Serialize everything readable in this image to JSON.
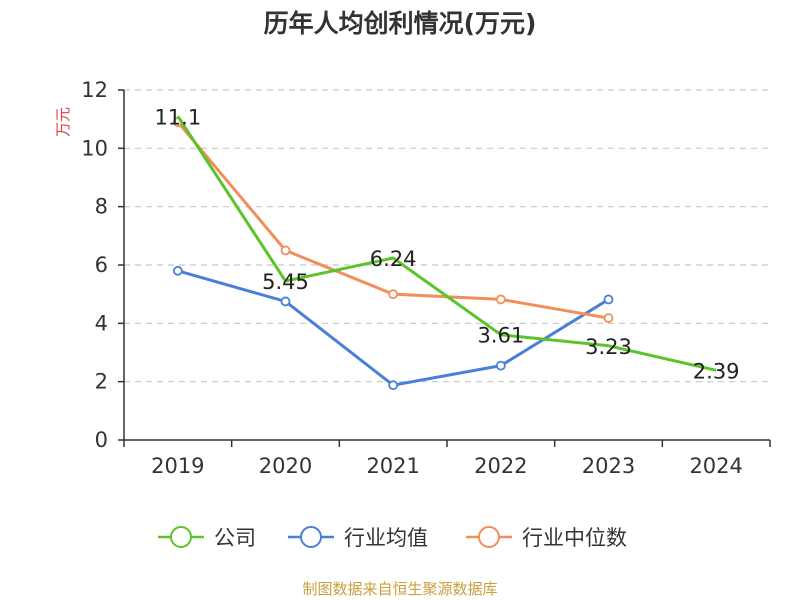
{
  "title": "历年人均创利情况(万元)",
  "source": "制图数据来自恒生聚源数据库",
  "colors": {
    "axis": "#333333",
    "grid": "#c8c8c8",
    "ylabel": "#e03c3c",
    "source": "#c8a03c"
  },
  "chart_data": {
    "type": "line",
    "categories": [
      "2019",
      "2020",
      "2021",
      "2022",
      "2023",
      "2024"
    ],
    "ylabel": "万元",
    "ylim": [
      0,
      12
    ],
    "yticks": [
      0,
      2,
      4,
      6,
      8,
      10,
      12
    ],
    "grid": true,
    "legend_position": "bottom",
    "series": [
      {
        "name": "公司",
        "color": "#5ac42a",
        "values": [
          11.1,
          5.45,
          6.24,
          3.61,
          3.23,
          2.39
        ],
        "labels": [
          "11.1",
          "5.45",
          "6.24",
          "3.61",
          "3.23",
          "2.39"
        ],
        "markers": false
      },
      {
        "name": "行业均值",
        "color": "#4a7fd8",
        "values": [
          5.8,
          4.75,
          1.88,
          2.55,
          4.82,
          null
        ],
        "labels": [],
        "markers": true
      },
      {
        "name": "行业中位数",
        "color": "#f28e5a",
        "values": [
          10.9,
          6.5,
          5.0,
          4.82,
          4.18,
          null
        ],
        "labels": [],
        "markers": true
      }
    ]
  }
}
